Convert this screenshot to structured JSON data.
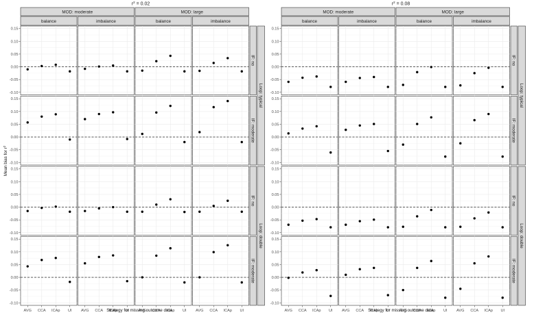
{
  "figure": {
    "ylabel": "Mean bias for r",
    "ylabel_sup": "2",
    "xlabel": "Strategy for missing outcome data",
    "titles": [
      {
        "main": "r",
        "sup": "2",
        "rest": " = 0.02"
      },
      {
        "main": "r",
        "sup": "2",
        "rest": " = 0.08"
      }
    ],
    "mod_strips": [
      "MOD: moderate",
      "MOD: large"
    ],
    "balance_strips": [
      "balance",
      "imbalance"
    ],
    "if_strips": [
      "IF: no",
      "IF: moderate",
      "IF: no",
      "IF: moderate"
    ],
    "loop_strips": [
      "Loop: typical",
      "Loop: double"
    ]
  },
  "chart_data": [
    {
      "type": "scatter",
      "title": "r² = 0.02",
      "xlabel": "Strategy for missing outcome data",
      "ylabel": "Mean bias for r²",
      "categories": [
        "AVG",
        "CCA",
        "ICAp",
        "UI"
      ],
      "ylim": [
        -0.11,
        0.16
      ],
      "yticks": [
        -0.1,
        -0.05,
        0.0,
        0.05,
        0.1,
        0.15
      ],
      "ytick_labels": [
        "-0.10",
        "-0.05",
        "0.00",
        "0.05",
        "0.10",
        "0.15"
      ],
      "reference_line": 0,
      "grid": true,
      "facet_cols": [
        "MOD: moderate / balance",
        "MOD: moderate / imbalance",
        "MOD: large / balance",
        "MOD: large / imbalance"
      ],
      "facet_rows": [
        "Loop: typical / IF: no",
        "Loop: typical / IF: moderate",
        "Loop: double / IF: no",
        "Loop: double / IF: moderate"
      ],
      "panels": [
        [
          [
            -0.01,
            0.003,
            0.008,
            -0.018
          ],
          [
            -0.008,
            0.001,
            0.005,
            -0.018
          ],
          [
            -0.015,
            0.022,
            0.043,
            -0.018
          ],
          [
            -0.016,
            0.015,
            0.034,
            -0.018
          ]
        ],
        [
          [
            0.057,
            0.08,
            0.089,
            -0.01
          ],
          [
            0.07,
            0.09,
            0.097,
            -0.008
          ],
          [
            0.012,
            0.096,
            0.122,
            -0.02
          ],
          [
            0.019,
            0.117,
            0.141,
            -0.02
          ]
        ],
        [
          [
            -0.015,
            -0.003,
            0.002,
            -0.018
          ],
          [
            -0.015,
            -0.005,
            0.0,
            -0.018
          ],
          [
            -0.018,
            0.01,
            0.031,
            -0.019
          ],
          [
            -0.018,
            0.005,
            0.025,
            -0.018
          ]
        ],
        [
          [
            0.043,
            0.068,
            0.076,
            -0.018
          ],
          [
            0.055,
            0.08,
            0.086,
            -0.015
          ],
          [
            0.0,
            0.085,
            0.114,
            -0.02
          ],
          [
            0.0,
            0.099,
            0.126,
            -0.02
          ]
        ]
      ]
    },
    {
      "type": "scatter",
      "title": "r² = 0.08",
      "xlabel": "Strategy for missing outcome data",
      "ylabel": "Mean bias for r²",
      "categories": [
        "AVG",
        "CCA",
        "ICAp",
        "UI"
      ],
      "ylim": [
        -0.11,
        0.16
      ],
      "yticks": [
        -0.1,
        -0.05,
        0.0,
        0.05,
        0.1,
        0.15
      ],
      "ytick_labels": [
        "-0.10",
        "-0.05",
        "0.00",
        "0.05",
        "0.10",
        "0.15"
      ],
      "reference_line": 0,
      "grid": true,
      "facet_cols": [
        "MOD: moderate / balance",
        "MOD: moderate / imbalance",
        "MOD: large / balance",
        "MOD: large / imbalance"
      ],
      "facet_rows": [
        "Loop: typical / IF: no",
        "Loop: typical / IF: moderate",
        "Loop: double / IF: no",
        "Loop: double / IF: moderate"
      ],
      "panels": [
        [
          [
            -0.059,
            -0.043,
            -0.038,
            -0.079
          ],
          [
            -0.059,
            -0.044,
            -0.04,
            -0.079
          ],
          [
            -0.071,
            -0.021,
            -0.001,
            -0.079
          ],
          [
            -0.073,
            -0.025,
            -0.004,
            -0.079
          ]
        ],
        [
          [
            0.014,
            0.033,
            0.042,
            -0.061
          ],
          [
            0.028,
            0.045,
            0.051,
            -0.055
          ],
          [
            -0.03,
            0.051,
            0.077,
            -0.077
          ],
          [
            -0.025,
            0.066,
            0.09,
            -0.077
          ]
        ],
        [
          [
            -0.069,
            -0.053,
            -0.047,
            -0.079
          ],
          [
            -0.069,
            -0.055,
            -0.049,
            -0.079
          ],
          [
            -0.077,
            -0.036,
            -0.011,
            -0.079
          ],
          [
            -0.077,
            -0.044,
            -0.021,
            -0.079
          ]
        ],
        [
          [
            -0.002,
            0.019,
            0.028,
            -0.073
          ],
          [
            0.01,
            0.032,
            0.037,
            -0.07
          ],
          [
            -0.05,
            0.037,
            0.064,
            -0.08
          ],
          [
            -0.045,
            0.055,
            0.082,
            -0.08
          ]
        ]
      ]
    }
  ]
}
